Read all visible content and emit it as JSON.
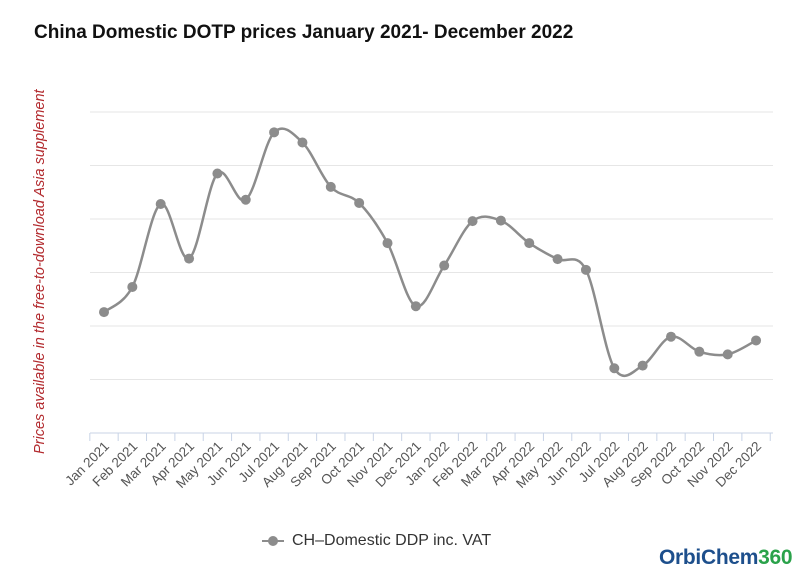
{
  "chart_data": {
    "type": "line",
    "title": "China Domestic DOTP prices January 2021- December 2022",
    "ylabel": "Prices available in the free-to-download Asia supplement",
    "xlabel": "",
    "categories": [
      "Jan 2021",
      "Feb 2021",
      "Mar 2021",
      "Apr 2021",
      "May 2021",
      "Jun 2021",
      "Jul 2021",
      "Aug 2021",
      "Sep 2021",
      "Oct 2021",
      "Nov 2021",
      "Dec 2021",
      "Jan 2022",
      "Feb 2022",
      "Mar 2022",
      "Apr 2022",
      "May 2022",
      "Jun 2022",
      "Jul 2022",
      "Aug 2022",
      "Sep 2022",
      "Oct 2022",
      "Nov 2022",
      "Dec 2022"
    ],
    "series": [
      {
        "name": "CH–Domestic DDP inc. VAT",
        "values": [
          2.26,
          2.73,
          4.28,
          3.26,
          4.85,
          4.36,
          5.62,
          5.43,
          4.6,
          4.3,
          3.55,
          2.37,
          3.13,
          3.96,
          3.97,
          3.55,
          3.25,
          3.05,
          1.21,
          1.26,
          1.8,
          1.52,
          1.47,
          1.73
        ]
      }
    ],
    "ylim": [
      0,
      6
    ],
    "yticks": [
      0,
      1,
      2,
      3,
      4,
      5,
      6
    ],
    "show_ytick_labels": false,
    "grid": true,
    "legend": "bottom-center",
    "line_color": "#8c8c8c",
    "grid_color": "#e6e6e6",
    "axis_color": "#c8d3e6"
  },
  "legend": {
    "label": "CH–Domestic DDP inc. VAT"
  },
  "logo": {
    "part1": "OrbiChem",
    "part2": "360"
  }
}
